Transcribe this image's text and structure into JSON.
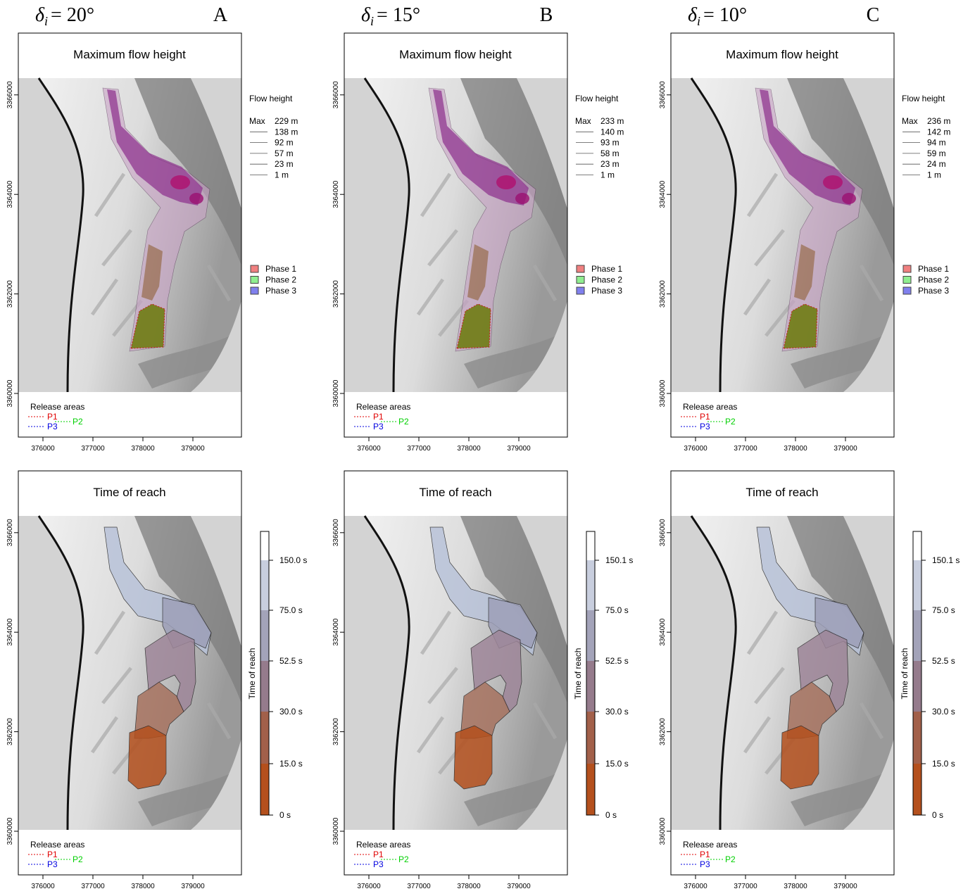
{
  "columns": [
    {
      "heading": {
        "symbol": "δ",
        "subscript": "i",
        "value": "= 20°"
      },
      "letter": "A",
      "flow_panel": {
        "title": "Maximum flow height",
        "xticks": [
          376000,
          377000,
          378000,
          379000
        ],
        "yticks": [
          3360000,
          3362000,
          3364000,
          3366000
        ],
        "legend": {
          "title": "Flow height",
          "max_label": "Max",
          "levels": [
            "229 m",
            "138 m",
            "92 m",
            "57 m",
            "23 m",
            "1 m"
          ]
        },
        "phases": [
          "Phase 1",
          "Phase 2",
          "Phase 3"
        ],
        "release": {
          "title": "Release areas",
          "items": [
            "P1",
            "P2",
            "P3"
          ]
        }
      },
      "time_panel": {
        "title": "Time of reach",
        "xticks": [
          376000,
          377000,
          378000,
          379000
        ],
        "yticks": [
          3360000,
          3362000,
          3364000,
          3366000
        ],
        "colorbar": {
          "label": "Time of reach",
          "ticks": [
            "150.0 s",
            "75.0 s",
            "52.5 s",
            "30.0 s",
            "15.0 s",
            "0 s"
          ]
        },
        "release": {
          "title": "Release areas",
          "items": [
            "P1",
            "P2",
            "P3"
          ]
        }
      }
    },
    {
      "heading": {
        "symbol": "δ",
        "subscript": "i",
        "value": "= 15°"
      },
      "letter": "B",
      "flow_panel": {
        "title": "Maximum flow height",
        "xticks": [
          376000,
          377000,
          378000,
          379000
        ],
        "yticks": [
          3360000,
          3362000,
          3364000,
          3366000
        ],
        "legend": {
          "title": "Flow height",
          "max_label": "Max",
          "levels": [
            "233 m",
            "140 m",
            "93 m",
            "58 m",
            "23 m",
            "1 m"
          ]
        },
        "phases": [
          "Phase 1",
          "Phase 2",
          "Phase 3"
        ],
        "release": {
          "title": "Release areas",
          "items": [
            "P1",
            "P2",
            "P3"
          ]
        }
      },
      "time_panel": {
        "title": "Time of reach",
        "xticks": [
          376000,
          377000,
          378000,
          379000
        ],
        "yticks": [
          3360000,
          3362000,
          3364000,
          3366000
        ],
        "colorbar": {
          "label": "Time of reach",
          "ticks": [
            "150.1 s",
            "75.0 s",
            "52.5 s",
            "30.0 s",
            "15.0 s",
            "0 s"
          ]
        },
        "release": {
          "title": "Release areas",
          "items": [
            "P1",
            "P2",
            "P3"
          ]
        }
      }
    },
    {
      "heading": {
        "symbol": "δ",
        "subscript": "i",
        "value": "= 10°"
      },
      "letter": "C",
      "flow_panel": {
        "title": "Maximum flow height",
        "xticks": [
          376000,
          377000,
          378000,
          379000
        ],
        "yticks": [
          3360000,
          3362000,
          3364000,
          3366000
        ],
        "legend": {
          "title": "Flow height",
          "max_label": "Max",
          "levels": [
            "236 m",
            "142 m",
            "94 m",
            "59 m",
            "24 m",
            "1 m"
          ]
        },
        "phases": [
          "Phase 1",
          "Phase 2",
          "Phase 3"
        ],
        "release": {
          "title": "Release areas",
          "items": [
            "P1",
            "P2",
            "P3"
          ]
        }
      },
      "time_panel": {
        "title": "Time of reach",
        "xticks": [
          376000,
          377000,
          378000,
          379000
        ],
        "yticks": [
          3360000,
          3362000,
          3364000,
          3366000
        ],
        "colorbar": {
          "label": "Time of reach",
          "ticks": [
            "150.1 s",
            "75.0 s",
            "52.5 s",
            "30.0 s",
            "15.0 s",
            "0 s"
          ]
        },
        "release": {
          "title": "Release areas",
          "items": [
            "P1",
            "P2",
            "P3"
          ]
        }
      }
    }
  ]
}
